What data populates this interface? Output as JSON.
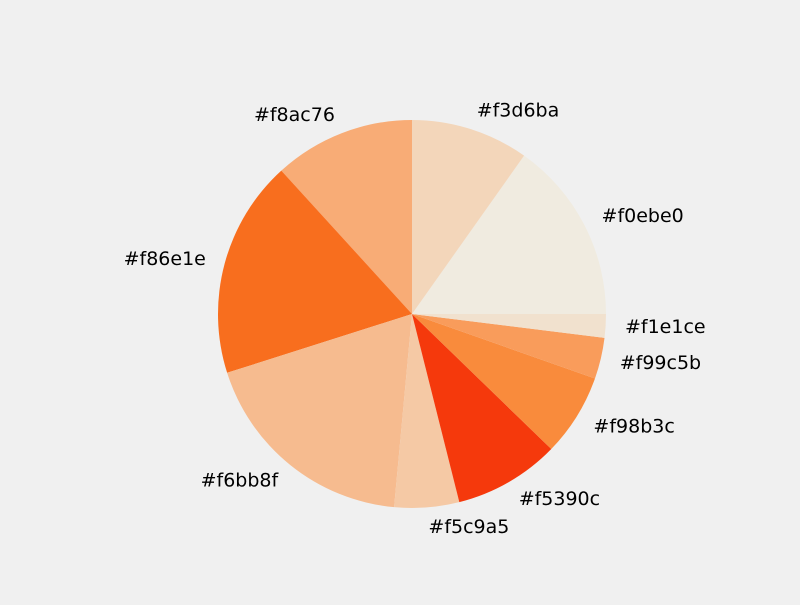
{
  "chart_data": {
    "type": "pie",
    "title": "",
    "start_angle": 0,
    "direction": "counterclockwise",
    "slices": [
      {
        "label": "#f0ebe0",
        "value": 15.5,
        "color": "#f0ebe0"
      },
      {
        "label": "#f3d6ba",
        "value": 10.0,
        "color": "#f3d6ba"
      },
      {
        "label": "#f8ac76",
        "value": 12.0,
        "color": "#f8ac76"
      },
      {
        "label": "#f86e1e",
        "value": 18.5,
        "color": "#f86e1e"
      },
      {
        "label": "#f6bb8f",
        "value": 19.0,
        "color": "#f6bb8f"
      },
      {
        "label": "#f5c9a5",
        "value": 5.5,
        "color": "#f5c9a5"
      },
      {
        "label": "#f5390c",
        "value": 9.0,
        "color": "#f5390c"
      },
      {
        "label": "#f98b3c",
        "value": 7.0,
        "color": "#f98b3c"
      },
      {
        "label": "#f99c5b",
        "value": 3.5,
        "color": "#f99c5b"
      },
      {
        "label": "#f1e1ce",
        "value": 2.0,
        "color": "#f1e1ce"
      }
    ]
  }
}
